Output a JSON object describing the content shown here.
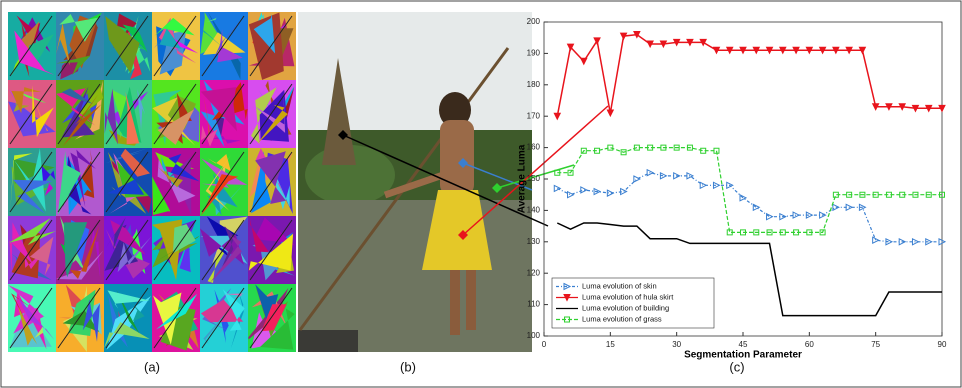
{
  "panels": [
    {
      "caption": "(a)"
    },
    {
      "caption": "(b)"
    },
    {
      "caption": "(c)"
    }
  ],
  "chart_data": {
    "type": "line",
    "xlabel": "Segmentation Parameter",
    "ylabel": "Average Luma",
    "xlim": [
      0,
      90
    ],
    "xticks": [
      0,
      15,
      30,
      45,
      60,
      75,
      90
    ],
    "ylim": [
      100,
      200
    ],
    "yticks": [
      100,
      110,
      120,
      130,
      140,
      150,
      160,
      170,
      180,
      190,
      200
    ],
    "legend": "lower left",
    "grid": false,
    "x": [
      3,
      6,
      9,
      12,
      15,
      18,
      21,
      24,
      27,
      30,
      33,
      36,
      39,
      42,
      45,
      48,
      51,
      54,
      57,
      60,
      63,
      66,
      69,
      72,
      75,
      78,
      81,
      84,
      87,
      90
    ],
    "series": [
      {
        "name": "Luma evolution of skin",
        "color": "#3a7fd0",
        "marker": "triangle-right",
        "dash": "dashdot",
        "values": [
          147,
          145,
          146.5,
          146,
          145.5,
          146,
          150,
          152,
          151,
          151,
          151,
          148,
          148,
          148,
          144,
          141,
          138,
          138,
          138.5,
          138.5,
          138.5,
          141,
          141,
          141,
          130.5,
          130,
          130,
          130,
          130,
          130
        ]
      },
      {
        "name": "Luma evolution of hula skirt",
        "color": "#e8141c",
        "marker": "triangle-down",
        "dash": "solid",
        "values": [
          170,
          192,
          187.5,
          194,
          171,
          195.5,
          196,
          193,
          193,
          193.5,
          193.5,
          193.5,
          191,
          191,
          191,
          191,
          191,
          191,
          191,
          191,
          191,
          191,
          191,
          191,
          173,
          173,
          173,
          172.5,
          172.5,
          172.5
        ]
      },
      {
        "name": "Luma evolution of building",
        "color": "#000000",
        "marker": "none",
        "dash": "solid",
        "values": [
          136,
          134,
          136,
          136,
          135.5,
          135,
          135,
          131,
          131,
          131,
          129.5,
          129.5,
          129.5,
          129.5,
          129.5,
          129.5,
          129.5,
          106.5,
          106.5,
          106.5,
          106.5,
          106.5,
          106.5,
          106.5,
          106.5,
          114,
          114,
          114,
          114,
          114
        ]
      },
      {
        "name": "Luma evolution of grass",
        "color": "#2fd02f",
        "marker": "square",
        "dash": "dashed",
        "values": [
          152,
          152,
          159,
          159,
          160,
          158.5,
          160,
          160,
          160,
          160,
          160,
          159,
          159,
          133,
          133,
          133,
          133,
          133,
          133,
          133,
          133,
          145,
          145,
          145,
          145,
          145,
          145,
          145,
          145,
          145
        ]
      }
    ]
  }
}
